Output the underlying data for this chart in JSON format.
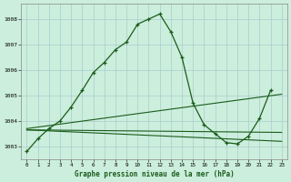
{
  "background_color": "#cceedd",
  "grid_color": "#aacccc",
  "line_color": "#1a5c1a",
  "marker_color": "#1a5c1a",
  "title": "Graphe pression niveau de la mer (hPa)",
  "ylim": [
    1002.5,
    1008.6
  ],
  "yticks": [
    1003,
    1004,
    1005,
    1006,
    1007,
    1008
  ],
  "series1": [
    1002.8,
    1003.3,
    1003.7,
    1004.0,
    1004.55,
    1005.2,
    1005.9,
    1006.3,
    1006.8,
    1007.1,
    1007.8,
    1008.0,
    1008.2,
    1007.5,
    1006.5,
    1004.7,
    1003.85,
    1003.5,
    1003.15,
    1003.1,
    1003.4,
    1004.1,
    1005.2,
    null
  ],
  "line_ascending": [
    [
      0,
      1003.7
    ],
    [
      23,
      1005.05
    ]
  ],
  "line_flat1": [
    [
      0,
      1003.65
    ],
    [
      23,
      1003.55
    ]
  ],
  "line_flat2": [
    [
      0,
      1003.65
    ],
    [
      23,
      1003.2
    ]
  ]
}
